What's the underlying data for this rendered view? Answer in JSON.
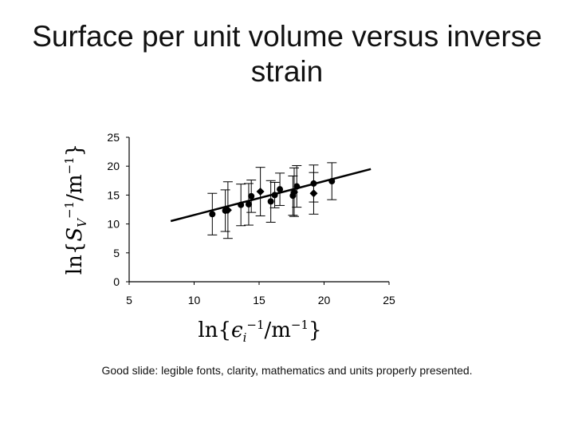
{
  "slide": {
    "title": "Surface per unit volume versus inverse strain",
    "caption": "Good slide: legible fonts, clarity, mathematics and units properly presented."
  },
  "chart_data": {
    "type": "scatter",
    "title": "",
    "xlabel": "ln{εi⁻¹/m⁻¹}",
    "ylabel": "ln{SV⁻¹/m⁻¹}",
    "xlim": [
      5,
      25
    ],
    "ylim": [
      0,
      25
    ],
    "xticks": [
      5,
      10,
      15,
      20,
      25
    ],
    "yticks": [
      0,
      5,
      10,
      15,
      20,
      25
    ],
    "grid": false,
    "legend": "none",
    "series": [
      {
        "marker": "circle",
        "points": [
          {
            "x": 11.4,
            "y": 11.7,
            "err": 3.6
          },
          {
            "x": 12.4,
            "y": 12.3,
            "err": 3.6
          },
          {
            "x": 13.6,
            "y": 13.3,
            "err": 3.6
          },
          {
            "x": 14.2,
            "y": 13.4,
            "err": 3.6
          },
          {
            "x": 14.4,
            "y": 14.8,
            "err": 2.8
          },
          {
            "x": 15.9,
            "y": 13.9,
            "err": 3.6
          },
          {
            "x": 16.2,
            "y": 15.0,
            "err": 2.2
          },
          {
            "x": 16.6,
            "y": 16.0,
            "err": 2.8
          },
          {
            "x": 17.6,
            "y": 14.9,
            "err": 3.4
          },
          {
            "x": 17.9,
            "y": 16.5,
            "err": 3.6
          },
          {
            "x": 19.2,
            "y": 17.0,
            "err": 3.2
          },
          {
            "x": 20.6,
            "y": 17.4,
            "err": 3.2
          }
        ]
      },
      {
        "marker": "diamond",
        "points": [
          {
            "x": 12.6,
            "y": 12.4,
            "err": 4.9
          },
          {
            "x": 15.1,
            "y": 15.6,
            "err": 4.2
          },
          {
            "x": 17.7,
            "y": 15.5,
            "err": 4.2
          },
          {
            "x": 19.2,
            "y": 15.3,
            "err": 3.6
          }
        ]
      }
    ],
    "trendline": {
      "x": [
        8.2,
        23.6
      ],
      "y": [
        10.5,
        19.5
      ]
    },
    "colors": {
      "markers": "#000000",
      "trendline": "#000000"
    }
  }
}
